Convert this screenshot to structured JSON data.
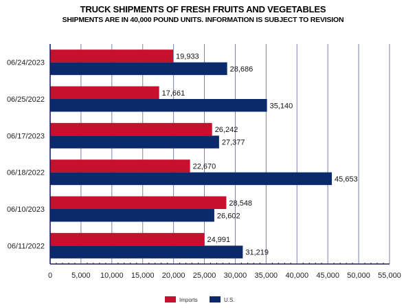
{
  "chart_data": {
    "type": "bar",
    "orientation": "horizontal",
    "title": "TRUCK SHIPMENTS OF FRESH FRUITS AND VEGETABLES",
    "subtitle": "SHIPMENTS ARE IN 40,000 POUND UNITS. INFORMATION IS SUBJECT TO REVISION",
    "categories": [
      "06/24/2023",
      "06/25/2022",
      "06/17/2023",
      "06/18/2022",
      "06/10/2023",
      "06/11/2022"
    ],
    "series": [
      {
        "name": "Imports",
        "color": "#c8102e",
        "values": [
          19933,
          17661,
          26242,
          22670,
          28548,
          24991
        ],
        "labels": [
          "19,933",
          "17,661",
          "26,242",
          "22,670",
          "28,548",
          "24,991"
        ]
      },
      {
        "name": "U.S.",
        "color": "#0a2a6b",
        "values": [
          28686,
          35140,
          27377,
          45653,
          26602,
          31219
        ],
        "labels": [
          "28,686",
          "35,140",
          "27,377",
          "45,653",
          "26,602",
          "31,219"
        ]
      }
    ],
    "xlim": [
      0,
      55000
    ],
    "xticks": [
      0,
      5000,
      10000,
      15000,
      20000,
      25000,
      30000,
      35000,
      40000,
      45000,
      50000,
      55000
    ],
    "xtick_labels": [
      "0",
      "5,000",
      "10,000",
      "15,000",
      "20,000",
      "25,000",
      "30,000",
      "35,000",
      "40,000",
      "45,000",
      "50,000",
      "55,000"
    ],
    "grid": "vertical",
    "grid_color": "#7b7fb3",
    "legend_position": "bottom"
  }
}
